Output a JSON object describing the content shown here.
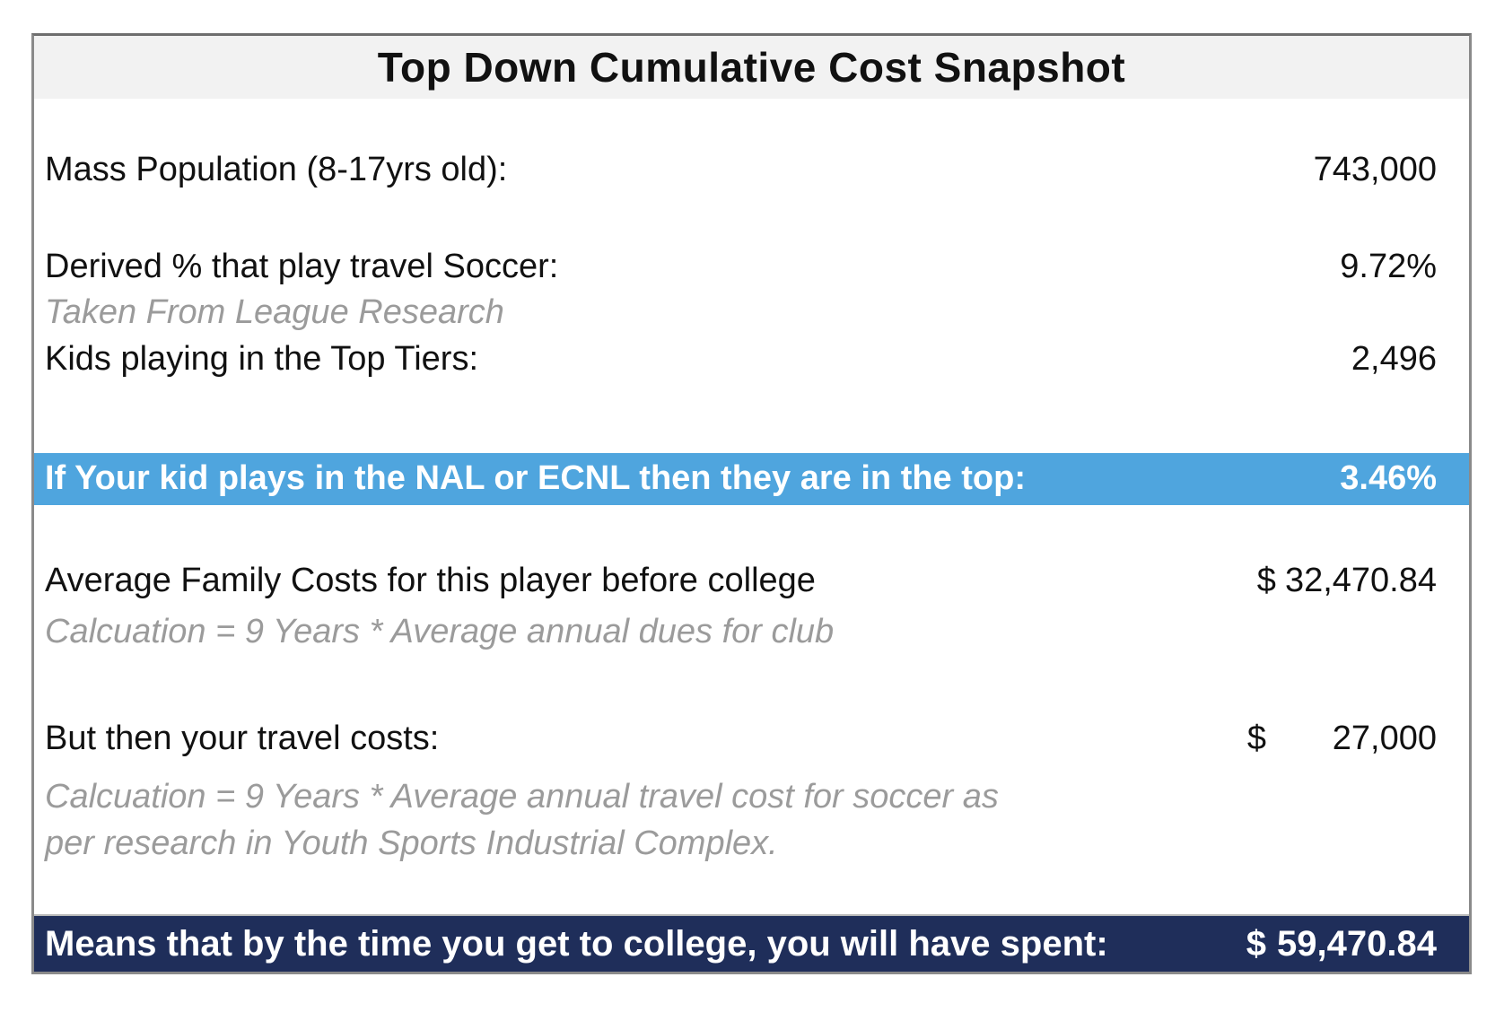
{
  "title": "Top Down Cumulative Cost Snapshot",
  "colors": {
    "title_bg": "#F2F2F2",
    "highlight_bg": "#4FA5DE",
    "total_bg": "#1F2E5A",
    "note_text": "#9B9B9B",
    "border": "#8A8A8A"
  },
  "rows": {
    "mass_population": {
      "label": "Mass Population (8-17yrs old):",
      "value": "743,000"
    },
    "derived_pct": {
      "label": "Derived % that play travel Soccer:",
      "value": "9.72%",
      "note": "Taken From League Research"
    },
    "top_tiers": {
      "label": "Kids playing in the Top Tiers:",
      "value": "2,496"
    },
    "highlight": {
      "label": "If Your kid plays in the NAL or ECNL then they are in the top:",
      "value": "3.46%"
    },
    "family_costs": {
      "label": "Average Family Costs for this player before college",
      "currency": "$",
      "value": "32,470.84",
      "note": "Calcuation = 9 Years * Average annual dues for club"
    },
    "travel_costs": {
      "label": "But then your travel costs:",
      "currency": "$",
      "value": "27,000",
      "note_line1": "Calcuation = 9 Years * Average annual travel cost for soccer as",
      "note_line2": "per research in Youth Sports Industrial Complex."
    },
    "total": {
      "label": "Means that by the time you get to college, you will have spent:",
      "currency": "$",
      "value": "59,470.84"
    }
  }
}
